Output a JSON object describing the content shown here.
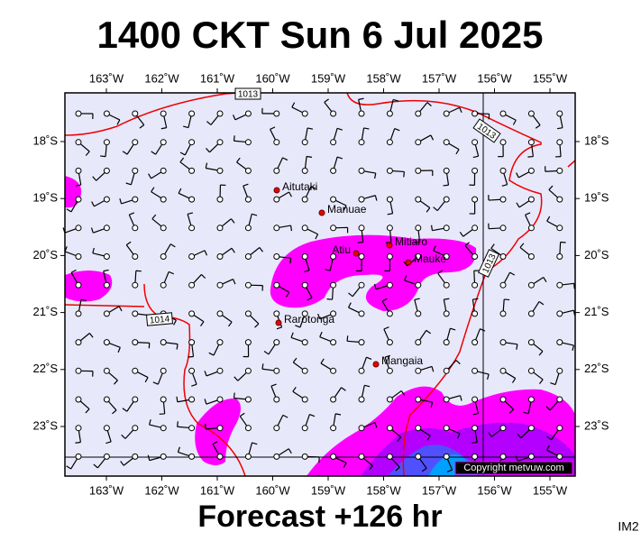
{
  "header": {
    "title": "1400 CKT Sun 6 Jul 2025"
  },
  "map": {
    "lon_labels": [
      "163˚W",
      "162˚W",
      "161˚W",
      "160˚W",
      "159˚W",
      "158˚W",
      "157˚W",
      "156˚W",
      "155˚W"
    ],
    "lat_labels": [
      "18˚S",
      "19˚S",
      "20˚S",
      "21˚S",
      "22˚S",
      "23˚S"
    ],
    "places": [
      "Aitutaki",
      "Manuae",
      "Atiu",
      "Mitiaro",
      "Mauke",
      "Rarotonga",
      "Mangaia"
    ],
    "isobar_labels": [
      "1013",
      "1013",
      "1013",
      "1014"
    ],
    "copyright": "Copyright metvuw.com"
  },
  "footer": {
    "forecast": "Forecast +126 hr",
    "code": "IM2"
  }
}
